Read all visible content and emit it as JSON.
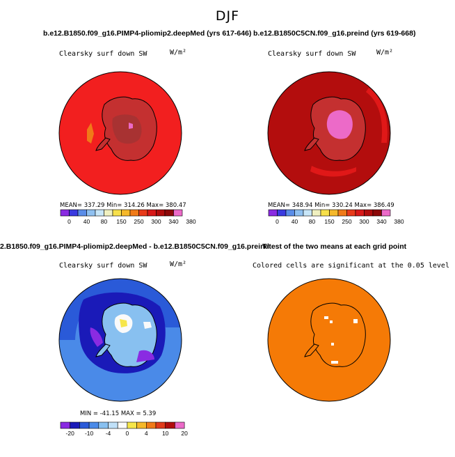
{
  "main_title": "DJF",
  "panels": [
    {
      "title": "b.e12.B1850.f09_g16.PIMP4-pliomip2.deepMed (yrs 617-646)",
      "variable": "Clearsky surf down SW",
      "units": "W/m²",
      "stats": "MEAN= 337.29   Min= 314.26   Max= 380.47",
      "colorbar_ticks": [
        "0",
        "40",
        "80",
        "150",
        "250",
        "300",
        "340",
        "380"
      ]
    },
    {
      "title": "b.e12.B1850C5CN.f09_g16.preind (yrs 619-668)",
      "variable": "Clearsky surf down SW",
      "units": "W/m²",
      "stats": "MEAN= 348.94   Min= 330.24   Max= 386.49",
      "colorbar_ticks": [
        "0",
        "40",
        "80",
        "150",
        "250",
        "300",
        "340",
        "380"
      ]
    },
    {
      "title": "2.B1850.f09_g16.PIMP4-pliomip2.deepMed - b.e12.B1850C5CN.f09_g16.preind",
      "variable": "Clearsky surf down SW",
      "units": "W/m²",
      "stats": "MIN = -41.15 MAX =   5.39",
      "colorbar_ticks": [
        "-20",
        "-10",
        "-4",
        "0",
        "4",
        "10",
        "20"
      ]
    },
    {
      "title": "T-test of the two means at each grid point",
      "subtitle": "Colored cells are significant at the 0.05 level"
    }
  ],
  "colors": {
    "abs_scale": [
      "#8a2be2",
      "#3a3ae0",
      "#5a8de8",
      "#8fc0f0",
      "#c8e6f8",
      "#f0f0c0",
      "#f7e04a",
      "#f5b82a",
      "#f07a18",
      "#e83a1a",
      "#d81818",
      "#b00c0c",
      "#8c0808",
      "#ec6ac8"
    ],
    "diff_scale": [
      "#8a2be2",
      "#1a1ab8",
      "#2a5ad8",
      "#4a8ae8",
      "#88c0f0",
      "#c0e0f8",
      "#fafafa",
      "#f6e64a",
      "#f5b82a",
      "#f07a18",
      "#e03a1a",
      "#b00c0c",
      "#ec6ac8"
    ],
    "panel1_ocean": "#f21f1f",
    "panel2_ocean": "#b30d0d",
    "ttest_fill": "#f57a06",
    "diff_ocean": "#4a8ae8"
  }
}
